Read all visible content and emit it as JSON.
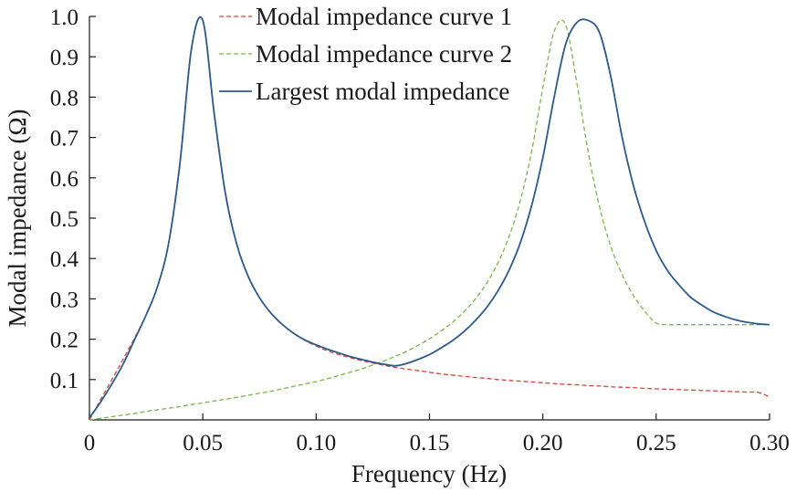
{
  "chart_data": {
    "type": "line",
    "xlabel": "Frequency (Hz)",
    "ylabel": "Modal impedance (Ω)",
    "xlim": [
      0,
      0.3
    ],
    "ylim": [
      0,
      1.0
    ],
    "grid": false,
    "legend_position": "top",
    "x_ticks": [
      {
        "value": 0,
        "label": "0"
      },
      {
        "value": 0.05,
        "label": "0.05"
      },
      {
        "value": 0.1,
        "label": "0.10"
      },
      {
        "value": 0.15,
        "label": "0.15"
      },
      {
        "value": 0.2,
        "label": "0.20"
      },
      {
        "value": 0.25,
        "label": "0.25"
      },
      {
        "value": 0.3,
        "label": "0.30"
      }
    ],
    "y_ticks": [
      {
        "value": 0.1,
        "label": "0.1"
      },
      {
        "value": 0.2,
        "label": "0.2"
      },
      {
        "value": 0.3,
        "label": "0.3"
      },
      {
        "value": 0.4,
        "label": "0.4"
      },
      {
        "value": 0.5,
        "label": "0.5"
      },
      {
        "value": 0.6,
        "label": "0.6"
      },
      {
        "value": 0.7,
        "label": "0.7"
      },
      {
        "value": 0.8,
        "label": "0.8"
      },
      {
        "value": 0.9,
        "label": "0.9"
      },
      {
        "value": 1.0,
        "label": "1.0"
      }
    ],
    "series": [
      {
        "name": "Modal impedance curve 1",
        "color": "#d9453b",
        "style": "dashed",
        "x": [
          0.0,
          0.005,
          0.01,
          0.015,
          0.02,
          0.025,
          0.03,
          0.035,
          0.04,
          0.045,
          0.05,
          0.055,
          0.06,
          0.065,
          0.07,
          0.075,
          0.08,
          0.085,
          0.09,
          0.095,
          0.1,
          0.105,
          0.11,
          0.115,
          0.12,
          0.125,
          0.13,
          0.135,
          0.14,
          0.145,
          0.15,
          0.155,
          0.16,
          0.165,
          0.17,
          0.175,
          0.18,
          0.185,
          0.19,
          0.195,
          0.2,
          0.205,
          0.21,
          0.215,
          0.22,
          0.225,
          0.23,
          0.235,
          0.24,
          0.245,
          0.25,
          0.255,
          0.26,
          0.265,
          0.27,
          0.275,
          0.28,
          0.285,
          0.29,
          0.295,
          0.3
        ],
        "y": [
          0.0,
          0.051,
          0.101,
          0.152,
          0.204,
          0.26,
          0.33,
          0.44,
          0.645,
          0.923,
          0.99,
          0.765,
          0.56,
          0.435,
          0.356,
          0.303,
          0.265,
          0.237,
          0.215,
          0.197,
          0.183,
          0.171,
          0.162,
          0.154,
          0.147,
          0.141,
          0.135,
          0.13,
          0.126,
          0.122,
          0.118,
          0.114,
          0.111,
          0.108,
          0.105,
          0.103,
          0.1,
          0.098,
          0.096,
          0.094,
          0.092,
          0.09,
          0.088,
          0.087,
          0.085,
          0.084,
          0.082,
          0.081,
          0.08,
          0.078,
          0.077,
          0.076,
          0.075,
          0.074,
          0.073,
          0.072,
          0.071,
          0.07,
          0.069,
          0.068,
          0.057
        ]
      },
      {
        "name": "Modal impedance curve 2",
        "color": "#7ab648",
        "style": "dashed",
        "x": [
          0.0,
          0.005,
          0.01,
          0.015,
          0.02,
          0.025,
          0.03,
          0.035,
          0.04,
          0.045,
          0.05,
          0.055,
          0.06,
          0.065,
          0.07,
          0.075,
          0.08,
          0.085,
          0.09,
          0.095,
          0.1,
          0.105,
          0.11,
          0.115,
          0.12,
          0.125,
          0.13,
          0.135,
          0.14,
          0.145,
          0.15,
          0.155,
          0.16,
          0.165,
          0.17,
          0.175,
          0.18,
          0.185,
          0.19,
          0.195,
          0.2,
          0.205,
          0.21,
          0.215,
          0.22,
          0.225,
          0.23,
          0.235,
          0.24,
          0.245,
          0.25,
          0.255,
          0.26,
          0.265,
          0.27,
          0.275,
          0.28,
          0.285,
          0.29,
          0.295,
          0.3
        ],
        "y": [
          0.0,
          0.004,
          0.008,
          0.012,
          0.016,
          0.021,
          0.025,
          0.029,
          0.033,
          0.038,
          0.042,
          0.047,
          0.051,
          0.056,
          0.061,
          0.066,
          0.071,
          0.077,
          0.083,
          0.089,
          0.095,
          0.102,
          0.11,
          0.118,
          0.126,
          0.136,
          0.146,
          0.158,
          0.17,
          0.185,
          0.201,
          0.22,
          0.241,
          0.267,
          0.298,
          0.337,
          0.387,
          0.453,
          0.542,
          0.664,
          0.823,
          0.963,
          0.98,
          0.835,
          0.664,
          0.528,
          0.43,
          0.36,
          0.308,
          0.269,
          0.24,
          0.236,
          0.236,
          0.236,
          0.236,
          0.236,
          0.236,
          0.236,
          0.236,
          0.236,
          0.236
        ]
      },
      {
        "name": "Largest modal impedance",
        "color": "#2b5a8f",
        "style": "solid",
        "x": [
          0.0,
          0.005,
          0.01,
          0.015,
          0.02,
          0.025,
          0.03,
          0.035,
          0.04,
          0.045,
          0.05,
          0.055,
          0.06,
          0.065,
          0.07,
          0.075,
          0.08,
          0.085,
          0.09,
          0.095,
          0.1,
          0.105,
          0.11,
          0.115,
          0.12,
          0.125,
          0.13,
          0.135,
          0.14,
          0.145,
          0.15,
          0.155,
          0.16,
          0.165,
          0.17,
          0.175,
          0.18,
          0.185,
          0.19,
          0.195,
          0.2,
          0.205,
          0.21,
          0.215,
          0.22,
          0.225,
          0.23,
          0.235,
          0.24,
          0.245,
          0.25,
          0.255,
          0.26,
          0.265,
          0.27,
          0.275,
          0.28,
          0.285,
          0.29,
          0.295,
          0.3
        ],
        "y": [
          0.005,
          0.045,
          0.09,
          0.14,
          0.2,
          0.26,
          0.33,
          0.44,
          0.64,
          0.92,
          0.99,
          0.76,
          0.56,
          0.435,
          0.356,
          0.303,
          0.265,
          0.237,
          0.215,
          0.198,
          0.186,
          0.175,
          0.166,
          0.157,
          0.15,
          0.143,
          0.138,
          0.134,
          0.14,
          0.15,
          0.162,
          0.178,
          0.196,
          0.218,
          0.245,
          0.277,
          0.318,
          0.37,
          0.438,
          0.53,
          0.65,
          0.8,
          0.93,
          0.985,
          0.99,
          0.96,
          0.85,
          0.7,
          0.58,
          0.49,
          0.42,
          0.37,
          0.335,
          0.305,
          0.285,
          0.268,
          0.257,
          0.248,
          0.242,
          0.238,
          0.236
        ]
      }
    ]
  }
}
